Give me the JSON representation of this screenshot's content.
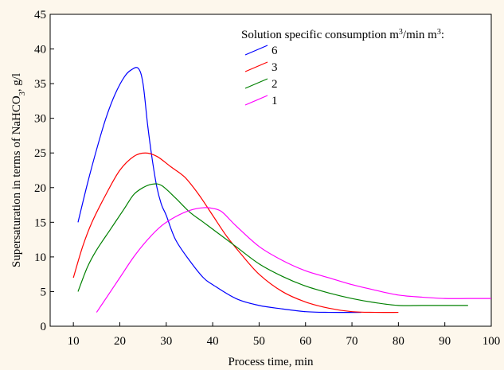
{
  "chart_data": {
    "type": "line",
    "xlabel": "Process time, min",
    "ylabel_parts": [
      "Supersaturation in terms of NaHCO",
      "3",
      ", g/l"
    ],
    "xlim": [
      5,
      100
    ],
    "ylim": [
      0,
      45
    ],
    "xticks": [
      10,
      20,
      30,
      40,
      50,
      60,
      70,
      80,
      90,
      100
    ],
    "yticks": [
      0,
      5,
      10,
      15,
      20,
      25,
      30,
      35,
      40,
      45
    ],
    "grid": false,
    "legend_position": "top-right",
    "legend_title_parts": [
      "Solution specific consumption m",
      "3",
      "/min m",
      "3",
      ":"
    ],
    "series": [
      {
        "name": "6",
        "color": "#0000ff",
        "points": [
          [
            11,
            15
          ],
          [
            13,
            20.5
          ],
          [
            15,
            25.5
          ],
          [
            17,
            30
          ],
          [
            19,
            33.5
          ],
          [
            21,
            36
          ],
          [
            22.5,
            37
          ],
          [
            24,
            37.2
          ],
          [
            25,
            35
          ],
          [
            26,
            29
          ],
          [
            27,
            24
          ],
          [
            28,
            20
          ],
          [
            29,
            17.5
          ],
          [
            30,
            16
          ],
          [
            32,
            12.5
          ],
          [
            35,
            9.5
          ],
          [
            38,
            7
          ],
          [
            40,
            6
          ],
          [
            45,
            4
          ],
          [
            50,
            3
          ],
          [
            55,
            2.5
          ],
          [
            60,
            2.1
          ],
          [
            65,
            2
          ],
          [
            72,
            2
          ]
        ]
      },
      {
        "name": "3",
        "color": "#ff0000",
        "points": [
          [
            10,
            7
          ],
          [
            12,
            11.5
          ],
          [
            14,
            15
          ],
          [
            17,
            19
          ],
          [
            20,
            22.5
          ],
          [
            23,
            24.5
          ],
          [
            25.5,
            25
          ],
          [
            28,
            24.5
          ],
          [
            31,
            23
          ],
          [
            34,
            21.5
          ],
          [
            37,
            19
          ],
          [
            40,
            16
          ],
          [
            43,
            13
          ],
          [
            46,
            10.5
          ],
          [
            50,
            7.5
          ],
          [
            55,
            5
          ],
          [
            60,
            3.5
          ],
          [
            65,
            2.6
          ],
          [
            70,
            2.1
          ],
          [
            75,
            2
          ],
          [
            80,
            2
          ]
        ]
      },
      {
        "name": "2",
        "color": "#008000",
        "points": [
          [
            11,
            5
          ],
          [
            13,
            8.5
          ],
          [
            15,
            11
          ],
          [
            18,
            14
          ],
          [
            21,
            17
          ],
          [
            23,
            19
          ],
          [
            25,
            20
          ],
          [
            27,
            20.5
          ],
          [
            29,
            20.3
          ],
          [
            32,
            18.5
          ],
          [
            35,
            16.5
          ],
          [
            38,
            15
          ],
          [
            41,
            13.5
          ],
          [
            45,
            11.5
          ],
          [
            50,
            9
          ],
          [
            55,
            7.2
          ],
          [
            60,
            5.8
          ],
          [
            65,
            4.8
          ],
          [
            70,
            4
          ],
          [
            75,
            3.4
          ],
          [
            80,
            3
          ],
          [
            85,
            3
          ],
          [
            90,
            3
          ],
          [
            95,
            3
          ]
        ]
      },
      {
        "name": "1",
        "color": "#ff00ff",
        "points": [
          [
            15,
            2
          ],
          [
            17,
            4
          ],
          [
            20,
            7
          ],
          [
            23,
            10
          ],
          [
            26,
            12.5
          ],
          [
            29,
            14.5
          ],
          [
            32,
            15.8
          ],
          [
            35,
            16.7
          ],
          [
            38,
            17.1
          ],
          [
            40,
            17
          ],
          [
            42,
            16.5
          ],
          [
            45,
            14.5
          ],
          [
            50,
            11.5
          ],
          [
            55,
            9.5
          ],
          [
            60,
            8
          ],
          [
            65,
            7
          ],
          [
            70,
            6
          ],
          [
            75,
            5.2
          ],
          [
            80,
            4.5
          ],
          [
            85,
            4.2
          ],
          [
            90,
            4
          ],
          [
            95,
            4
          ],
          [
            100,
            4
          ]
        ]
      }
    ]
  }
}
